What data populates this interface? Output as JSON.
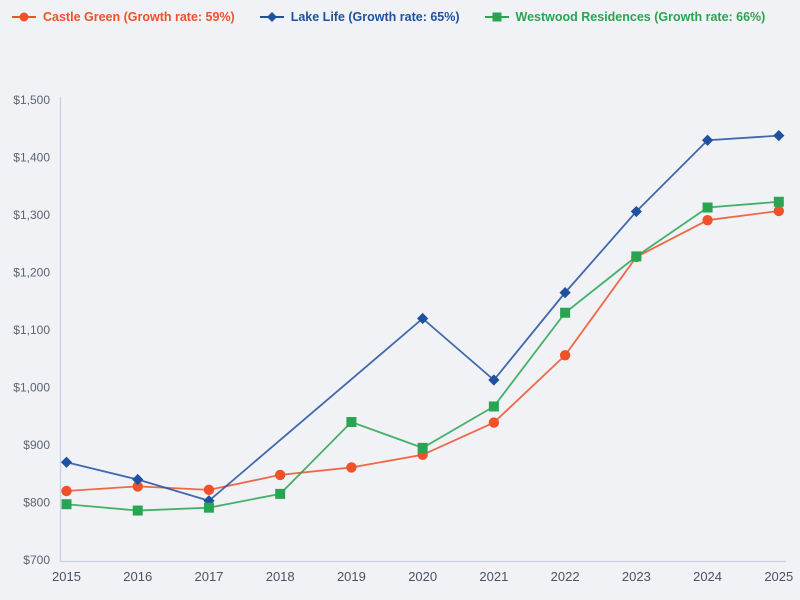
{
  "page": {
    "background": "#f1f2f5"
  },
  "legend": {
    "position": "top-left",
    "items": [
      {
        "label": "Castle Green (Growth rate: 59%)",
        "color": "#f0502a",
        "marker": "circle"
      },
      {
        "label": "Lake Life (Growth rate: 65%)",
        "color": "#20519e",
        "marker": "diamond"
      },
      {
        "label": "Westwood Residences (Growth rate: 66%)",
        "color": "#28a552",
        "marker": "square"
      }
    ]
  },
  "chart_data": {
    "type": "line",
    "categories": [
      "2015",
      "2016",
      "2017",
      "2018",
      "2019",
      "2020",
      "2021",
      "2022",
      "2023",
      "2024",
      "2025"
    ],
    "series": [
      {
        "name": "Castle Green",
        "growth_rate": "59%",
        "color": "#f0502a",
        "marker": "circle",
        "values": [
          820,
          828,
          822,
          848,
          861,
          883,
          939,
          1056,
          1227,
          1291,
          1307
        ]
      },
      {
        "name": "Lake Life",
        "growth_rate": "65%",
        "color": "#20519e",
        "marker": "diamond",
        "values": [
          870,
          840,
          803,
          null,
          null,
          1120,
          1013,
          1165,
          1306,
          1430,
          1438
        ]
      },
      {
        "name": "Westwood Residences",
        "growth_rate": "66%",
        "color": "#28a552",
        "marker": "square",
        "values": [
          797,
          786,
          791,
          815,
          940,
          895,
          967,
          1130,
          1228,
          1313,
          1323
        ]
      }
    ],
    "ylim": [
      700,
      1500
    ],
    "ytick_step": 100,
    "y_tick_labels": [
      "$700",
      "$800",
      "$900",
      "$1,000",
      "$1,100",
      "$1,200",
      "$1,300",
      "$1,400",
      "$1,500"
    ],
    "x_tick_labels": [
      "2015",
      "2016",
      "2017",
      "2018",
      "2019",
      "2020",
      "2021",
      "2022",
      "2023",
      "2024",
      "2025"
    ],
    "grid": false,
    "legend_position": "top-left",
    "title": "",
    "xlabel": "",
    "ylabel": ""
  },
  "style": {
    "axis_line_color": "#c3d0e8",
    "y_tick_text_color": "#5b6472",
    "x_tick_text_color": "#4a5361"
  }
}
